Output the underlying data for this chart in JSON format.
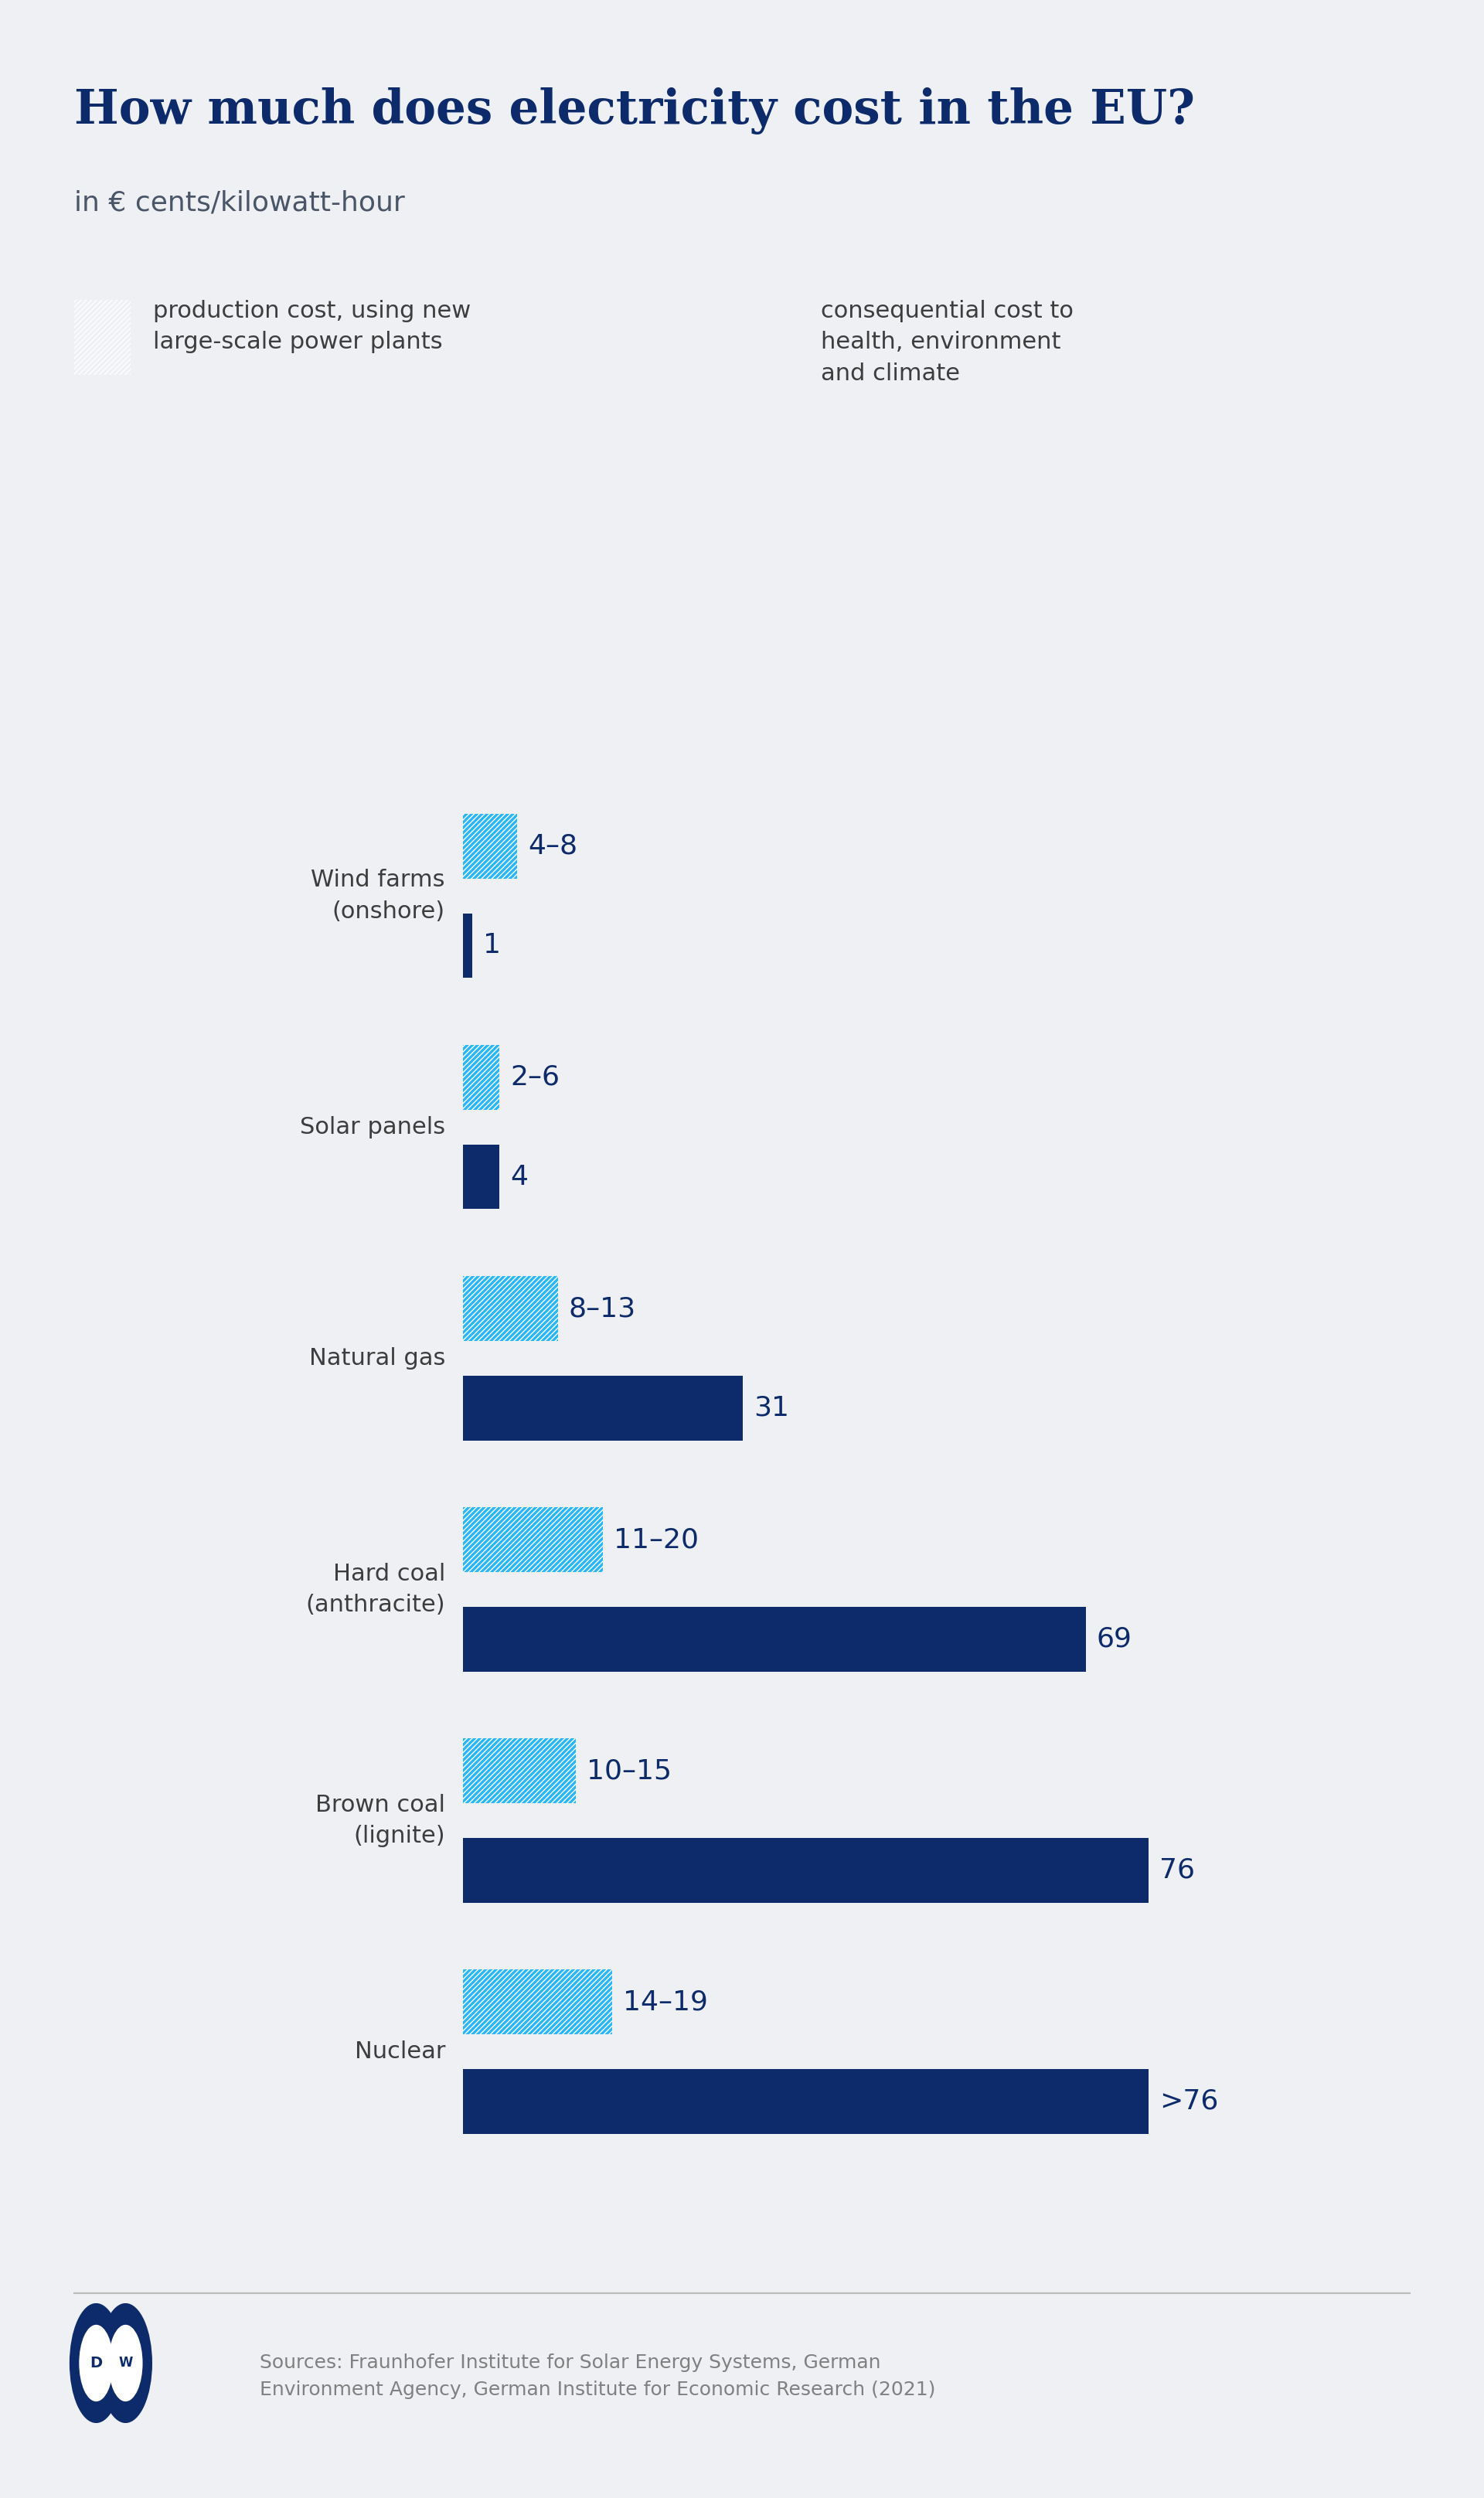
{
  "title": "How much does electricity cost in the EU?",
  "subtitle": "in € cents/kilowatt-hour",
  "background_color": "#eef0f4",
  "title_color": "#0d2b6b",
  "subtitle_color": "#4a5568",
  "text_color": "#3d3d3d",
  "label_color": "#0d2b6b",
  "light_blue": "#29b6f6",
  "dark_blue": "#0d2b6b",
  "categories": [
    "Wind farms\n(onshore)",
    "Solar panels",
    "Natural gas",
    "Hard coal\n(anthracite)",
    "Brown coal\n(lignite)",
    "Nuclear"
  ],
  "production_values": [
    6.0,
    4.0,
    10.5,
    15.5,
    12.5,
    16.5
  ],
  "production_labels": [
    "4–8",
    "2–6",
    "8–13",
    "11–20",
    "10–15",
    "14–19"
  ],
  "consequential_values": [
    1,
    4,
    31,
    69,
    76,
    76
  ],
  "consequential_labels": [
    "1",
    "4",
    "31",
    "69",
    "76",
    ">76"
  ],
  "legend_light_label": "production cost, using new\nlarge-scale power plants",
  "legend_dark_label": "consequential cost to\nhealth, environment\nand climate",
  "source_text": "Sources: Fraunhofer Institute for Solar Energy Systems, German\nEnvironment Agency, German Institute for Economic Research (2021)",
  "bar_height": 0.28,
  "label_fontsize": 26,
  "tick_fontsize": 22,
  "title_fontsize": 44,
  "subtitle_fontsize": 26,
  "legend_fontsize": 22,
  "source_fontsize": 18
}
